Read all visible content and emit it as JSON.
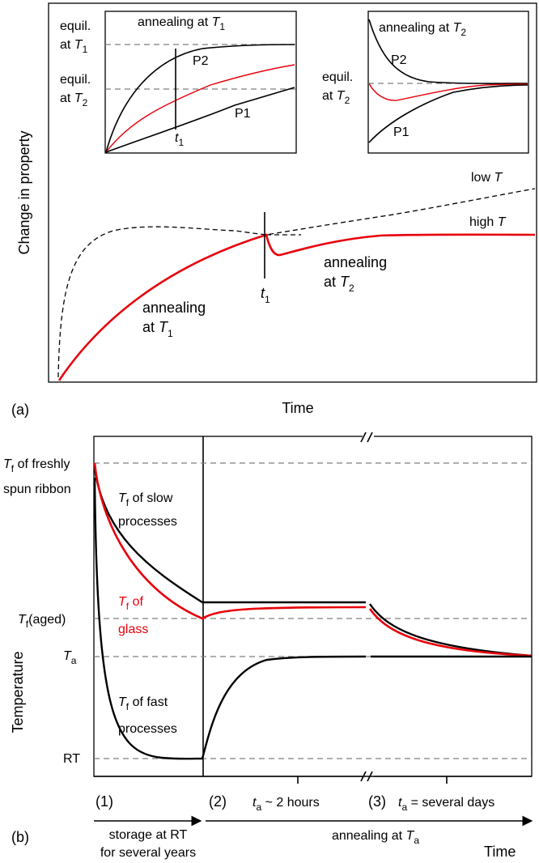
{
  "panel_a": {
    "tag": "(a)",
    "ylabel": "Change in property",
    "xlabel": "Time",
    "inset1": {
      "title_prefix": "annealing at ",
      "title_var": "T",
      "title_sub": "1",
      "eq1_line1": "equil.",
      "eq1_line2": "at ",
      "eq1_var": "T",
      "eq1_sub": "1",
      "eq2_line1": "equil.",
      "eq2_line2": "at ",
      "eq2_var": "T",
      "eq2_sub": "2",
      "p2": "P2",
      "p1": "P1",
      "t_var": "t",
      "t_sub": "1"
    },
    "inset2": {
      "title_prefix": "annealing at ",
      "title_var": "T",
      "title_sub": "2",
      "eq_line1": "equil.",
      "eq_line2": "at ",
      "eq_var": "T",
      "eq_sub": "2",
      "p2": "P2",
      "p1": "P1"
    },
    "low_t_prefix": "low ",
    "low_t_var": "T",
    "high_t_prefix": "high ",
    "high_t_var": "T",
    "ann1_line1": "annealing",
    "ann1_line2": "at ",
    "ann1_var": "T",
    "ann1_sub": "1",
    "ann2_line1": "annealing",
    "ann2_line2": "at ",
    "ann2_var": "T",
    "ann2_sub": "2",
    "t1_var": "t",
    "t1_sub": "1"
  },
  "panel_b": {
    "tag": "(b)",
    "ylabel": "Temperature",
    "xlabel": "Time",
    "y_fresh_var": "T",
    "y_fresh_sub": "f",
    "y_fresh_text": " of freshly",
    "y_fresh_line2": "spun ribbon",
    "y_aged_var": "T",
    "y_aged_sub": "f",
    "y_aged_text": "(aged)",
    "y_ta_var": "T",
    "y_ta_sub": "a",
    "y_rt": "RT",
    "slow_var": "T",
    "slow_sub": "f",
    "slow_text": " of slow",
    "slow_line2": "processes",
    "glass_var": "T",
    "glass_sub": "f",
    "glass_text": " of",
    "glass_line2": "glass",
    "fast_var": "T",
    "fast_sub": "f",
    "fast_text": " of fast",
    "fast_line2": "processes",
    "seg1": "(1)",
    "seg2": "(2)",
    "seg2_var": "t",
    "seg2_sub": "a",
    "seg2_text": " ~ 2 hours",
    "seg3": "(3)",
    "seg3_var": "t",
    "seg3_sub": "a",
    "seg3_text": " = several days",
    "storage_line1": "storage at RT",
    "storage_line2": "for several years",
    "anneal_prefix": "annealing at ",
    "anneal_var": "T",
    "anneal_sub": "a"
  },
  "colors": {
    "glass": "#e8000b",
    "line": "#000000",
    "reference": "#7f7f7f"
  }
}
